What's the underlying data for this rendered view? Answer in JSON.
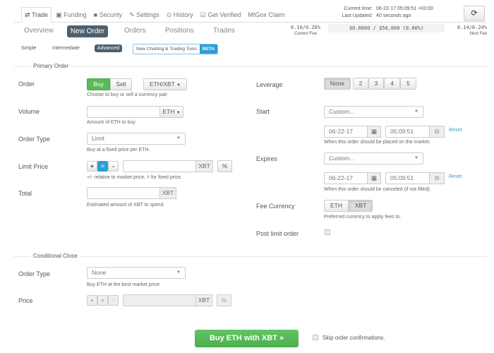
{
  "top_tabs": [
    {
      "label": "Trade",
      "icon": "exchange-icon",
      "icon_glyph": "⇄"
    },
    {
      "label": "Funding",
      "icon": "money-icon",
      "icon_glyph": "▣"
    },
    {
      "label": "Security",
      "icon": "lock-icon",
      "icon_glyph": "🔒"
    },
    {
      "label": "Settings",
      "icon": "wrench-icon",
      "icon_glyph": "🔧"
    },
    {
      "label": "History",
      "icon": "clock-icon",
      "icon_glyph": "⊙"
    },
    {
      "label": "Get Verified",
      "icon": "check-square-icon",
      "icon_glyph": "☑"
    },
    {
      "label": "MtGox Claim"
    }
  ],
  "status": {
    "current_time_label": "Current time:",
    "current_time": "06-22-17 05:09:51 +03:00",
    "last_updated_label": "Last Updated:",
    "last_updated": "40 seconds ago",
    "refresh_icon": "refresh-icon"
  },
  "sub_tabs": [
    "Overview",
    "New Order",
    "Orders",
    "Positions",
    "Trades"
  ],
  "fees": {
    "current": "0.16/0.26%",
    "current_label": "Current Fee",
    "volume": "$0.0000 / $50,000 (0.00%)",
    "next": "0.14/0.24%",
    "next_label": "Next Fee"
  },
  "modes": {
    "simple": "Simple",
    "intermediate": "Intermediate",
    "advanced": "Advanced",
    "charting": "New Charting & Trading Tools",
    "beta": "BETA"
  },
  "primary": {
    "legend": "Primary Order",
    "order_label": "Order",
    "buy": "Buy",
    "sell": "Sell",
    "pair": "ETH/XBT",
    "order_help": "Choose to buy or sell a currency pair",
    "volume_label": "Volume",
    "volume_value": "",
    "volume_unit": "ETH",
    "volume_help": "Amount of ETH to buy",
    "type_label": "Order Type",
    "type_value": "Limit",
    "type_help": "Buy at a fixed price per ETH.",
    "limit_label": "Limit Price",
    "plus": "+",
    "equals": "=",
    "minus": "-",
    "limit_unit": "XBT",
    "percent": "%",
    "limit_help": "+/- relative to market price, = for fixed price.",
    "total_label": "Total",
    "total_unit": "XBT",
    "total_help": "Estimated amount of XBT to spend.",
    "leverage_label": "Leverage",
    "leverage_options": [
      "None",
      "2",
      "3",
      "4",
      "5"
    ],
    "start_label": "Start",
    "start_select": "Custom...",
    "start_date": "06-22-17",
    "start_time": "05:09:51",
    "reset": "Reset",
    "start_help": "When this order should be placed on the market.",
    "expires_label": "Expires",
    "expires_select": "Custom...",
    "expires_date": "06-22-17",
    "expires_time": "05:09:51",
    "expires_help": "When this order should be canceled (if not filled).",
    "fee_label": "Fee Currency",
    "fee_options": [
      "ETH",
      "XBT"
    ],
    "fee_help": "Preferred currency to apply fees to.",
    "post_label": "Post limit order"
  },
  "conditional": {
    "legend": "Conditional Close",
    "type_label": "Order Type",
    "type_value": "None",
    "type_help": "Buy ETH at the best market price.",
    "price_label": "Price",
    "plus": "+",
    "equals": "=",
    "minus": "-",
    "unit": "XBT",
    "percent": "%"
  },
  "submit": {
    "label": "Buy ETH with XBT »",
    "skip_label": "Skip order confirmations."
  },
  "colors": {
    "green": "#5cb85c",
    "dark": "#4d6070",
    "teal": "#2a9fd6"
  }
}
